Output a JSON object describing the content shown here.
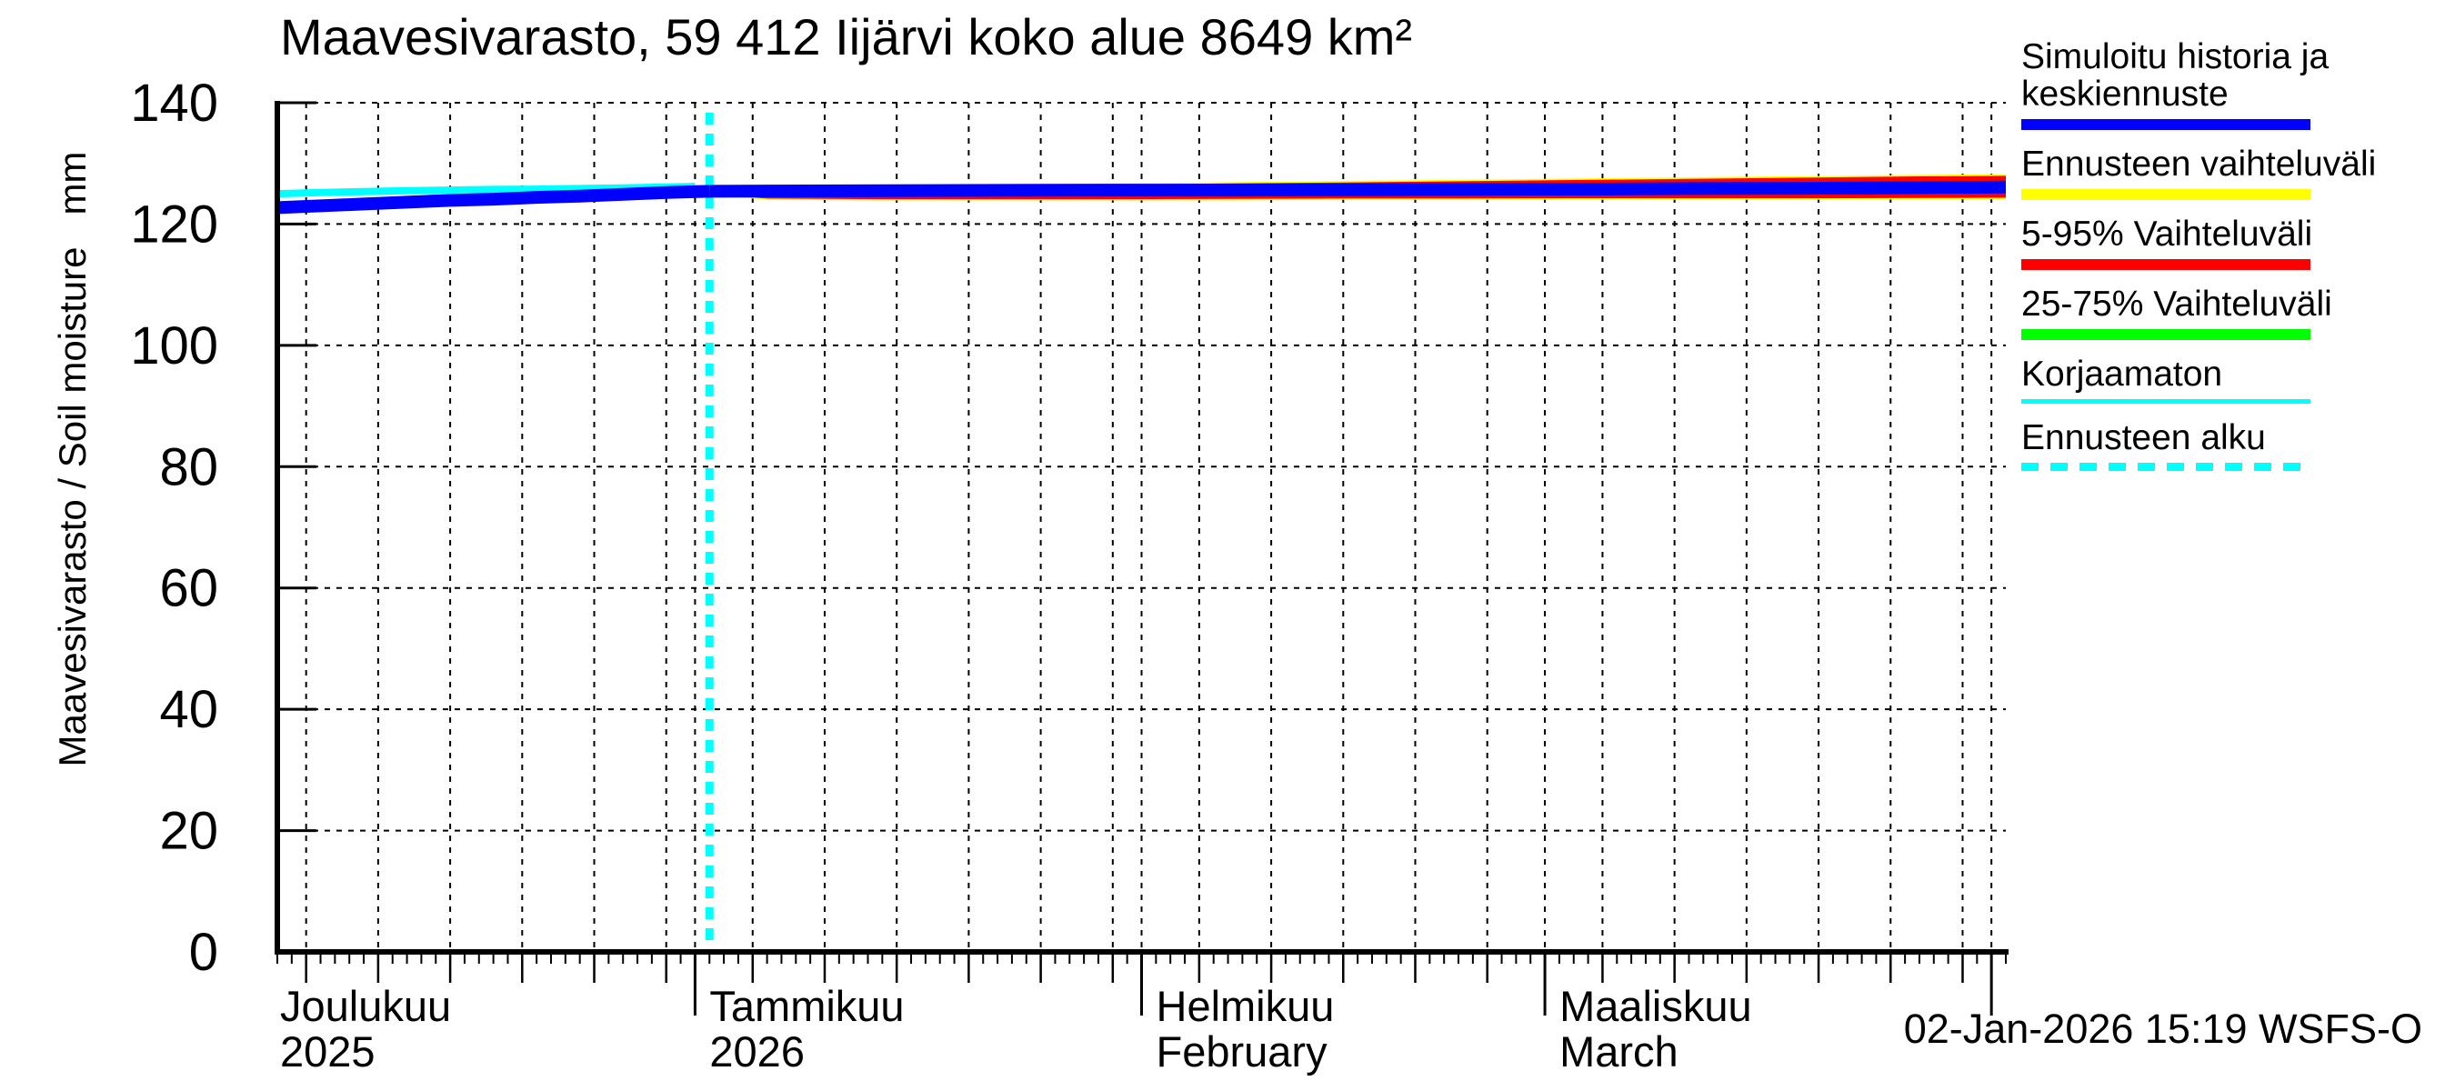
{
  "header": {
    "title": "Maavesivarasto, 59 412 Iijärvi koko alue 8649 km²"
  },
  "footer": {
    "timestamp": "02-Jan-2026 15:19 WSFS-O"
  },
  "legend": {
    "items": [
      {
        "label": "Simuloitu historia ja keskiennuste",
        "color": "#0000ff",
        "style": "thick"
      },
      {
        "label": "Ennusteen vaihteluväli",
        "color": "#ffff00",
        "style": "thick"
      },
      {
        "label": "5-95% Vaihteluväli",
        "color": "#ff0000",
        "style": "thick"
      },
      {
        "label": "25-75% Vaihteluväli",
        "color": "#00ff00",
        "style": "thick"
      },
      {
        "label": "Korjaamaton",
        "color": "#00ffff",
        "style": "thin"
      },
      {
        "label": "Ennusteen alku",
        "color": "#00ffff",
        "style": "dashed"
      }
    ]
  },
  "chart_data": {
    "type": "line",
    "title": "Maavesivarasto, 59 412 Iijärvi koko alue 8649 km²",
    "ylabel": "Maavesivarasto / Soil moisture   mm",
    "ylim": [
      0,
      140
    ],
    "yticks": [
      0,
      20,
      40,
      60,
      80,
      100,
      120,
      140
    ],
    "grid": true,
    "legend_position": "right",
    "x_axis": {
      "domain_days": 120,
      "months": [
        {
          "label": "Joulukuu",
          "sublabel": "2025",
          "first_of_month_day": -2,
          "days_in_month": 31
        },
        {
          "label": "Tammikuu",
          "sublabel": "2026",
          "first_of_month_day": 29,
          "days_in_month": 31
        },
        {
          "label": "Helmikuu",
          "sublabel": "February",
          "first_of_month_day": 60,
          "days_in_month": 28
        },
        {
          "label": "Maaliskuu",
          "sublabel": "March",
          "first_of_month_day": 88,
          "days_in_month": 31
        }
      ],
      "end_boundary_day": 119,
      "five_day_marks": [
        5,
        10,
        15,
        20,
        25,
        30
      ]
    },
    "forecast_start": {
      "label": "Ennusteen alku",
      "day": 30,
      "color": "#00ffff"
    },
    "series": [
      {
        "name": "Ennusteen vaihteluväli",
        "type": "band",
        "color": "#ffff00",
        "days": [
          30,
          34,
          42,
          50,
          58,
          66,
          74,
          82,
          90,
          98,
          106,
          114,
          120
        ],
        "upper": [
          125.9,
          126.2,
          126.4,
          126.5,
          126.7,
          126.9,
          127.1,
          127.3,
          127.5,
          127.7,
          127.9,
          128.1,
          128.2
        ],
        "lower": [
          124.8,
          124.0,
          123.9,
          123.9,
          123.9,
          123.9,
          124.0,
          124.0,
          124.0,
          124.0,
          124.0,
          124.05,
          124.1
        ]
      },
      {
        "name": "5-95% Vaihteluväli",
        "type": "band",
        "color": "#ff0000",
        "days": [
          30,
          34,
          42,
          50,
          58,
          66,
          74,
          82,
          90,
          98,
          106,
          114,
          120
        ],
        "upper": [
          125.8,
          126.0,
          126.2,
          126.3,
          126.5,
          126.7,
          126.85,
          127.05,
          127.25,
          127.45,
          127.65,
          127.85,
          127.95
        ],
        "lower": [
          124.9,
          124.2,
          124.1,
          124.1,
          124.1,
          124.15,
          124.2,
          124.2,
          124.25,
          124.25,
          124.25,
          124.3,
          124.35
        ]
      },
      {
        "name": "25-75% Vaihteluväli",
        "type": "band",
        "color": "#00ff00",
        "days": [
          30,
          34,
          42,
          50,
          58,
          66,
          74,
          82,
          90,
          98,
          106,
          114,
          120
        ],
        "upper": [
          125.85,
          125.95,
          126.0,
          126.1,
          126.15,
          126.2,
          126.2,
          126.25,
          126.3,
          126.35,
          126.4,
          126.5,
          126.6
        ],
        "lower": [
          124.95,
          125.0,
          125.0,
          125.05,
          125.1,
          125.1,
          125.15,
          125.2,
          125.25,
          125.3,
          125.35,
          125.45,
          125.5
        ]
      },
      {
        "name": "Korjaamaton",
        "type": "line",
        "color": "#00ffff",
        "width": 8,
        "days": [
          0,
          3,
          6,
          9,
          12,
          15,
          18,
          21,
          24,
          27,
          29
        ],
        "values": [
          125.0,
          125.2,
          125.35,
          125.5,
          125.6,
          125.7,
          125.75,
          125.85,
          125.95,
          126.1,
          126.2
        ]
      },
      {
        "name": "Simuloitu historia",
        "type": "line",
        "color": "#0000ff",
        "width": 14,
        "days": [
          0,
          3,
          6,
          9,
          12,
          15,
          18,
          21,
          24,
          27,
          30
        ],
        "values": [
          122.7,
          123.0,
          123.3,
          123.6,
          123.9,
          124.1,
          124.4,
          124.6,
          124.9,
          125.2,
          125.4
        ]
      },
      {
        "name": "Keskiennuste",
        "type": "line",
        "color": "#0000ff",
        "width": 14,
        "days": [
          30,
          34,
          42,
          50,
          58,
          66,
          74,
          82,
          90,
          98,
          106,
          114,
          120
        ],
        "values": [
          125.4,
          125.45,
          125.5,
          125.55,
          125.6,
          125.6,
          125.65,
          125.7,
          125.75,
          125.85,
          125.9,
          126.0,
          126.1
        ]
      }
    ]
  }
}
